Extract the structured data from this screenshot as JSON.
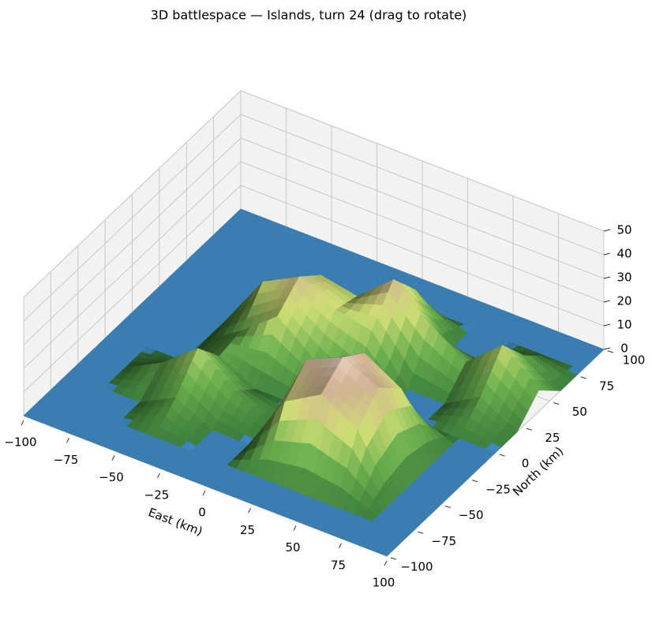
{
  "chart_data": {
    "type": "surface",
    "title": "3D battlespace — Islands, turn 24  (drag to rotate)",
    "xlabel": "East (km)",
    "ylabel": "North (km)",
    "x": [
      -100,
      -80,
      -60,
      -40,
      -20,
      0,
      20,
      40,
      60,
      80,
      100
    ],
    "y": [
      -100,
      -80,
      -60,
      -40,
      -20,
      0,
      20,
      40,
      60,
      80,
      100
    ],
    "z": [
      [
        0,
        0,
        0,
        0,
        0,
        0,
        0,
        0,
        0,
        0,
        0
      ],
      [
        0,
        0,
        0,
        0,
        0,
        0,
        0,
        0,
        0,
        0,
        0
      ],
      [
        0,
        0,
        0,
        8,
        0,
        0,
        24,
        33,
        24,
        0,
        0
      ],
      [
        0,
        0,
        8,
        20,
        8,
        0,
        33,
        40,
        33,
        0,
        0
      ],
      [
        0,
        0,
        0,
        8,
        0,
        0,
        24,
        33,
        24,
        0,
        0
      ],
      [
        0,
        0,
        0,
        10,
        22,
        10,
        0,
        0,
        0,
        0,
        0
      ],
      [
        0,
        0,
        0,
        22,
        30,
        22,
        19,
        0,
        0,
        9,
        0
      ],
      [
        0,
        0,
        0,
        10,
        22,
        19,
        32,
        19,
        9,
        22,
        9
      ],
      [
        0,
        0,
        0,
        0,
        0,
        0,
        19,
        0,
        0,
        9,
        0
      ],
      [
        0,
        0,
        0,
        0,
        0,
        0,
        0,
        0,
        0,
        0,
        0
      ],
      [
        0,
        0,
        0,
        0,
        0,
        0,
        0,
        0,
        0,
        0,
        0
      ]
    ],
    "xlim": [
      -100,
      100
    ],
    "ylim": [
      -100,
      100
    ],
    "zlim": [
      0,
      50
    ],
    "xticks": [
      {
        "value": -100,
        "label": "−100"
      },
      {
        "value": -75,
        "label": "−75"
      },
      {
        "value": -50,
        "label": "−50"
      },
      {
        "value": -25,
        "label": "−25"
      },
      0,
      25,
      50,
      75,
      100
    ],
    "yticks": [
      {
        "value": -100,
        "label": "−100"
      },
      {
        "value": -75,
        "label": "−75"
      },
      {
        "value": -50,
        "label": "−50"
      },
      {
        "value": -25,
        "label": "−25"
      },
      0,
      25,
      50,
      75,
      100
    ],
    "zticks": [
      0,
      10,
      20,
      30,
      40,
      50
    ],
    "sea_color": "#3a7db0",
    "land_colors": [
      "#356f34",
      "#5f9a45",
      "#b5c166",
      "#b59a80",
      "#dccfc8"
    ],
    "grid": true
  }
}
